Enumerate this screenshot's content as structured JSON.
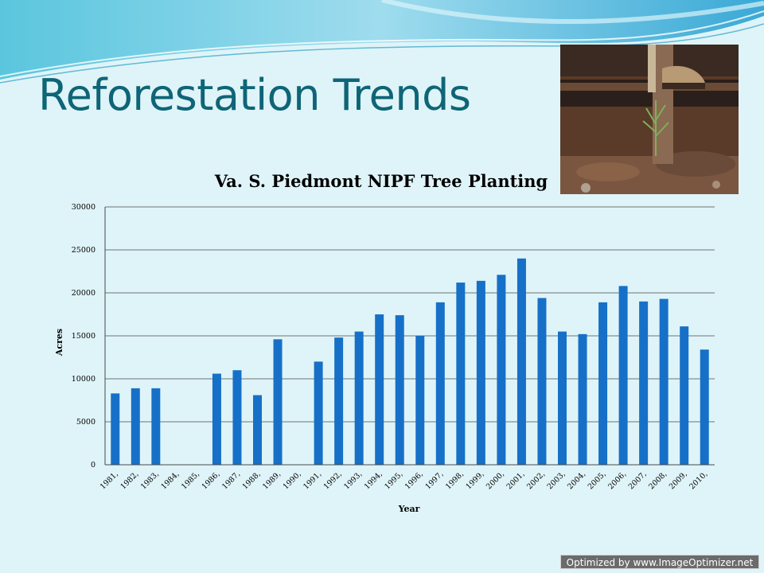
{
  "slide": {
    "title": "Reforestation Trends",
    "watermark": "Optimized by www.ImageOptimizer.net",
    "photo_icon": "tree-planting-photo",
    "colors": {
      "title": "#0e6577",
      "bar": "#1670c8",
      "background": "#dff4f8"
    }
  },
  "chart_data": {
    "type": "bar",
    "title": "Va. S. Piedmont NIPF Tree Planting",
    "xlabel": "Year",
    "ylabel": "Acres",
    "ylim": [
      0,
      30000
    ],
    "yticks": [
      "0",
      "5000",
      "10000",
      "15000",
      "20000",
      "25000",
      "30000"
    ],
    "grid": true,
    "legend": "none",
    "categories": [
      "1981,",
      "1982,",
      "1983,",
      "1984,",
      "1985,",
      "1986,",
      "1987,",
      "1988,",
      "1989,",
      "1990,",
      "1991,",
      "1992,",
      "1993,",
      "1994,",
      "1995,",
      "1996,",
      "1997,",
      "1998,",
      "1999,",
      "2000,",
      "2001,",
      "2002,",
      "2003,",
      "2004,",
      "2005,",
      "2006,",
      "2007,",
      "2008,",
      "2009,",
      "2010,"
    ],
    "values": [
      8300,
      8900,
      8900,
      0,
      0,
      10600,
      11000,
      8100,
      14600,
      0,
      12000,
      14800,
      15500,
      17500,
      17400,
      15000,
      18900,
      21200,
      21400,
      22100,
      24000,
      19400,
      15500,
      15200,
      18900,
      20800,
      19000,
      19300,
      16100,
      13400
    ]
  }
}
